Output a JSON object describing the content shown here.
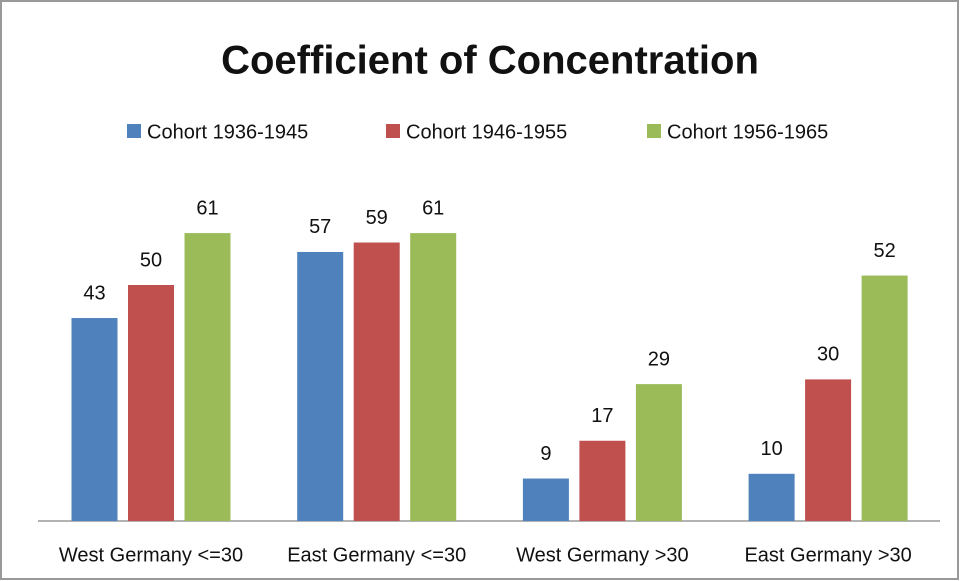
{
  "chart_data": {
    "type": "bar",
    "title": "Coefficient of Concentration",
    "categories": [
      "West Germany <=30",
      "East Germany <=30",
      "West Germany >30",
      "East Germany >30"
    ],
    "series": [
      {
        "name": "Cohort 1936-1945",
        "color": "#4f81bd",
        "values": [
          43,
          57,
          9,
          10
        ]
      },
      {
        "name": "Cohort 1946-1955",
        "color": "#c0504d",
        "values": [
          50,
          59,
          17,
          30
        ]
      },
      {
        "name": "Cohort 1956-1965",
        "color": "#9bbb59",
        "values": [
          61,
          61,
          29,
          52
        ]
      }
    ],
    "legend": "top"
  }
}
